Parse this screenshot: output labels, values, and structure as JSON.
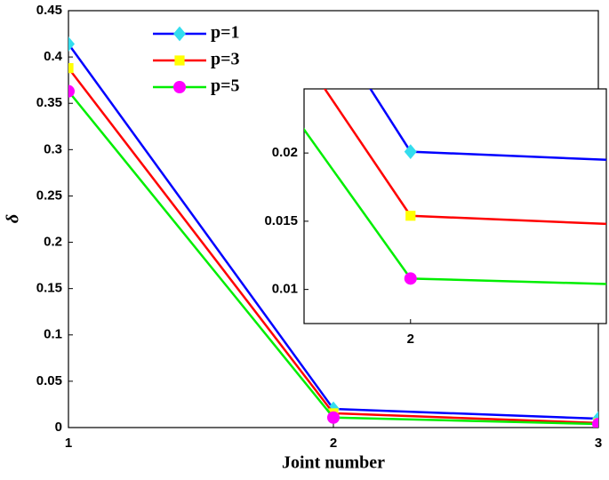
{
  "chart_data": {
    "type": "line",
    "x_label": "Joint number",
    "y_label": "δ",
    "x": [
      1,
      2,
      3
    ],
    "xlim": [
      1,
      3
    ],
    "xticks": [
      1,
      2,
      3
    ],
    "ylim": [
      0,
      0.45
    ],
    "yticks": [
      0,
      0.05,
      0.1,
      0.15,
      0.2,
      0.25,
      0.3,
      0.35,
      0.4,
      0.45
    ],
    "series": [
      {
        "name": "p=1",
        "color": "#0000ff",
        "marker": "diamond",
        "marker_color": "#33ddee",
        "values": [
          0.414,
          0.0201,
          0.0096
        ]
      },
      {
        "name": "p=3",
        "color": "#ff0000",
        "marker": "square",
        "marker_color": "#ffff00",
        "values": [
          0.388,
          0.0154,
          0.0049
        ]
      },
      {
        "name": "p=5",
        "color": "#00ee00",
        "marker": "circle",
        "marker_color": "#ff00ff",
        "values": [
          0.363,
          0.0108,
          0.0038
        ]
      }
    ],
    "inset": {
      "xlim": [
        1.969,
        2.057
      ],
      "xticks": [
        2
      ],
      "ylim": [
        0.0075,
        0.0247
      ],
      "yticks": [
        0.01,
        0.015,
        0.02
      ]
    }
  }
}
